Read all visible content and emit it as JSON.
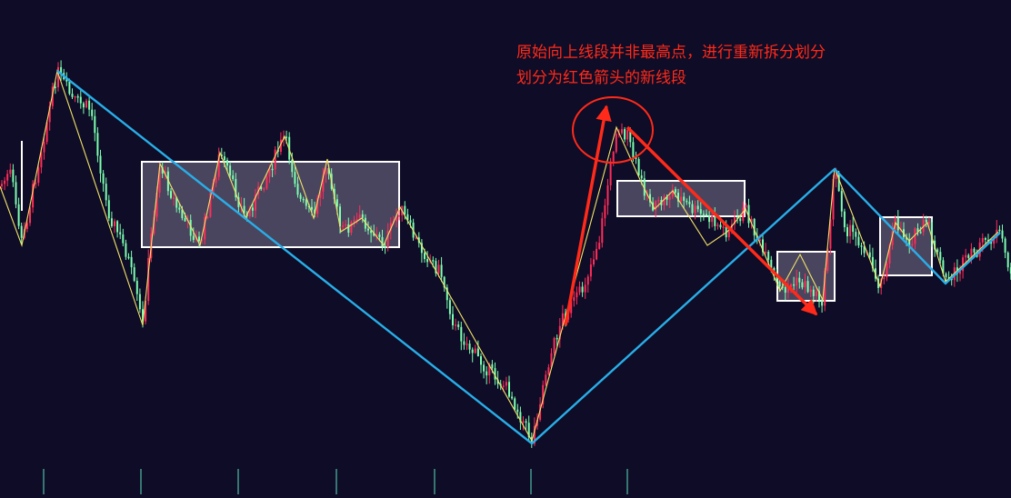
{
  "chart_data": {
    "type": "candlestick",
    "annotation": {
      "line1": "原始向上线段并非最高点，进行重新拆分划分",
      "line2": "划分为红色箭头的新线段"
    },
    "colors": {
      "background": "#0e0c26",
      "candle_up": "#ff2d5a",
      "candle_down": "#7dffb0",
      "segment_line": "#29aee8",
      "stroke_line": "#f3e36a",
      "zhongshu_box_fill": "#5a566e",
      "zhongshu_box_border": "#ffffff",
      "annotation_arrow": "#ff2a1a"
    },
    "grid": false
  }
}
